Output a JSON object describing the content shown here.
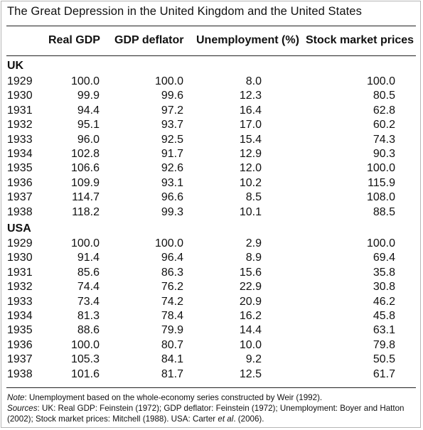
{
  "title": "The Great Depression in the United Kingdom and the United States",
  "headers": {
    "real_gdp": "Real GDP",
    "gdp_deflator": "GDP deflator",
    "unemployment": "Unemployment (%)",
    "stock_prices": "Stock market prices"
  },
  "groups": {
    "uk": {
      "label": "UK",
      "rows": [
        {
          "year": "1929",
          "gdp": "100.0",
          "deflator": "100.0",
          "unemployment": "8.0",
          "stock": "100.0"
        },
        {
          "year": "1930",
          "gdp": "99.9",
          "deflator": "99.6",
          "unemployment": "12.3",
          "stock": "80.5"
        },
        {
          "year": "1931",
          "gdp": "94.4",
          "deflator": "97.2",
          "unemployment": "16.4",
          "stock": "62.8"
        },
        {
          "year": "1932",
          "gdp": "95.1",
          "deflator": "93.7",
          "unemployment": "17.0",
          "stock": "60.2"
        },
        {
          "year": "1933",
          "gdp": "96.0",
          "deflator": "92.5",
          "unemployment": "15.4",
          "stock": "74.3"
        },
        {
          "year": "1934",
          "gdp": "102.8",
          "deflator": "91.7",
          "unemployment": "12.9",
          "stock": "90.3"
        },
        {
          "year": "1935",
          "gdp": "106.6",
          "deflator": "92.6",
          "unemployment": "12.0",
          "stock": "100.0"
        },
        {
          "year": "1936",
          "gdp": "109.9",
          "deflator": "93.1",
          "unemployment": "10.2",
          "stock": "115.9"
        },
        {
          "year": "1937",
          "gdp": "114.7",
          "deflator": "96.6",
          "unemployment": "8.5",
          "stock": "108.0"
        },
        {
          "year": "1938",
          "gdp": "118.2",
          "deflator": "99.3",
          "unemployment": "10.1",
          "stock": "88.5"
        }
      ]
    },
    "usa": {
      "label": "USA",
      "rows": [
        {
          "year": "1929",
          "gdp": "100.0",
          "deflator": "100.0",
          "unemployment": "2.9",
          "stock": "100.0"
        },
        {
          "year": "1930",
          "gdp": "91.4",
          "deflator": "96.4",
          "unemployment": "8.9",
          "stock": "69.4"
        },
        {
          "year": "1931",
          "gdp": "85.6",
          "deflator": "86.3",
          "unemployment": "15.6",
          "stock": "35.8"
        },
        {
          "year": "1932",
          "gdp": "74.4",
          "deflator": "76.2",
          "unemployment": "22.9",
          "stock": "30.8"
        },
        {
          "year": "1933",
          "gdp": "73.4",
          "deflator": "74.2",
          "unemployment": "20.9",
          "stock": "46.2"
        },
        {
          "year": "1934",
          "gdp": "81.3",
          "deflator": "78.4",
          "unemployment": "16.2",
          "stock": "45.8"
        },
        {
          "year": "1935",
          "gdp": "88.6",
          "deflator": "79.9",
          "unemployment": "14.4",
          "stock": "63.1"
        },
        {
          "year": "1936",
          "gdp": "100.0",
          "deflator": "80.7",
          "unemployment": "10.0",
          "stock": "79.8"
        },
        {
          "year": "1937",
          "gdp": "105.3",
          "deflator": "84.1",
          "unemployment": "9.2",
          "stock": "50.5"
        },
        {
          "year": "1938",
          "gdp": "101.6",
          "deflator": "81.7",
          "unemployment": "12.5",
          "stock": "61.7"
        }
      ]
    }
  },
  "notes": {
    "note_label": "Note",
    "note_text": ": Unemployment based on the whole-economy series constructed by Weir (1992).",
    "sources_label": "Sources",
    "sources_text_1": ": UK: Real GDP: Feinstein (1972); GDP deflator: Feinstein (1972); Unemployment: Boyer and Hatton (2002); Stock market prices: Mitchell (1988). USA: Carter ",
    "sources_et_al": "et al",
    "sources_text_2": ". (2006)."
  }
}
